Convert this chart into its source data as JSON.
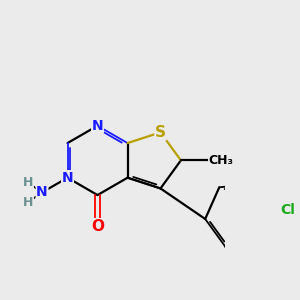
{
  "background_color": "#ebebeb",
  "bond_color": "#000000",
  "atom_colors": {
    "N": "#1a1aff",
    "O": "#ff0000",
    "S": "#b8a000",
    "Cl": "#1aaa1a",
    "C": "#000000",
    "H": "#6a9090"
  }
}
